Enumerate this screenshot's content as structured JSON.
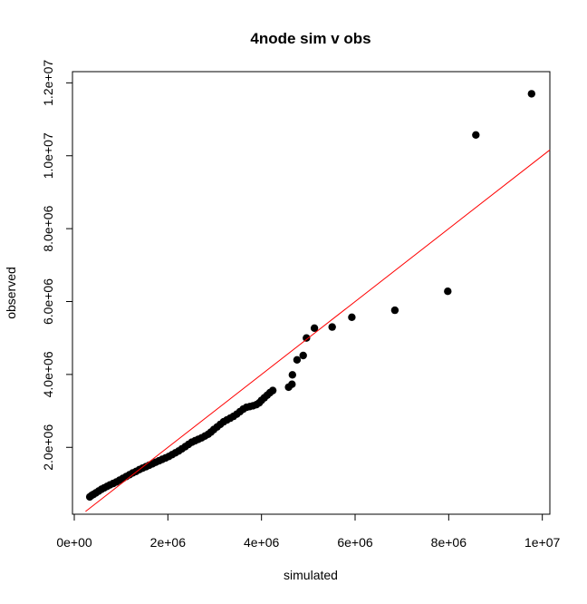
{
  "chart_data": {
    "type": "scatter",
    "title": "4node sim v obs",
    "xlabel": "simulated",
    "ylabel": "observed",
    "xlim": [
      0,
      10000000
    ],
    "ylim": [
      240000,
      12200000
    ],
    "grid": false,
    "x_ticks": [
      {
        "value": 0,
        "label": "0e+00"
      },
      {
        "value": 2000000,
        "label": "2e+06"
      },
      {
        "value": 4000000,
        "label": "4e+06"
      },
      {
        "value": 6000000,
        "label": "6e+06"
      },
      {
        "value": 8000000,
        "label": "8e+06"
      },
      {
        "value": 10000000,
        "label": "1e+07"
      }
    ],
    "y_ticks": [
      {
        "value": 2000000,
        "label": "2.0e+06"
      },
      {
        "value": 4000000,
        "label": "4.0e+06"
      },
      {
        "value": 6000000,
        "label": "6.0e+06"
      },
      {
        "value": 8000000,
        "label": "8.0e+06"
      },
      {
        "value": 10000000,
        "label": "1.0e+07"
      },
      {
        "value": 12000000,
        "label": "1.2e+07"
      }
    ],
    "reference_line": {
      "color": "#ff0000",
      "slope": 1,
      "intercept": 0
    },
    "point_color": "#000000",
    "points": [
      {
        "x": 330000,
        "y": 640000
      },
      {
        "x": 370000,
        "y": 680000
      },
      {
        "x": 410000,
        "y": 710000
      },
      {
        "x": 460000,
        "y": 750000
      },
      {
        "x": 520000,
        "y": 800000
      },
      {
        "x": 580000,
        "y": 850000
      },
      {
        "x": 640000,
        "y": 890000
      },
      {
        "x": 700000,
        "y": 930000
      },
      {
        "x": 760000,
        "y": 970000
      },
      {
        "x": 830000,
        "y": 1010000
      },
      {
        "x": 900000,
        "y": 1050000
      },
      {
        "x": 970000,
        "y": 1100000
      },
      {
        "x": 1040000,
        "y": 1150000
      },
      {
        "x": 1110000,
        "y": 1200000
      },
      {
        "x": 1180000,
        "y": 1250000
      },
      {
        "x": 1250000,
        "y": 1300000
      },
      {
        "x": 1320000,
        "y": 1340000
      },
      {
        "x": 1390000,
        "y": 1390000
      },
      {
        "x": 1460000,
        "y": 1430000
      },
      {
        "x": 1530000,
        "y": 1470000
      },
      {
        "x": 1600000,
        "y": 1510000
      },
      {
        "x": 1670000,
        "y": 1550000
      },
      {
        "x": 1740000,
        "y": 1590000
      },
      {
        "x": 1810000,
        "y": 1630000
      },
      {
        "x": 1880000,
        "y": 1670000
      },
      {
        "x": 1950000,
        "y": 1710000
      },
      {
        "x": 2020000,
        "y": 1750000
      },
      {
        "x": 2090000,
        "y": 1800000
      },
      {
        "x": 2160000,
        "y": 1850000
      },
      {
        "x": 2230000,
        "y": 1900000
      },
      {
        "x": 2300000,
        "y": 1960000
      },
      {
        "x": 2370000,
        "y": 2020000
      },
      {
        "x": 2440000,
        "y": 2080000
      },
      {
        "x": 2510000,
        "y": 2140000
      },
      {
        "x": 2580000,
        "y": 2180000
      },
      {
        "x": 2650000,
        "y": 2220000
      },
      {
        "x": 2720000,
        "y": 2260000
      },
      {
        "x": 2790000,
        "y": 2310000
      },
      {
        "x": 2860000,
        "y": 2360000
      },
      {
        "x": 2920000,
        "y": 2420000
      },
      {
        "x": 2980000,
        "y": 2490000
      },
      {
        "x": 3050000,
        "y": 2560000
      },
      {
        "x": 3120000,
        "y": 2630000
      },
      {
        "x": 3190000,
        "y": 2700000
      },
      {
        "x": 3260000,
        "y": 2750000
      },
      {
        "x": 3330000,
        "y": 2800000
      },
      {
        "x": 3400000,
        "y": 2850000
      },
      {
        "x": 3470000,
        "y": 2910000
      },
      {
        "x": 3540000,
        "y": 2980000
      },
      {
        "x": 3610000,
        "y": 3050000
      },
      {
        "x": 3680000,
        "y": 3100000
      },
      {
        "x": 3750000,
        "y": 3120000
      },
      {
        "x": 3820000,
        "y": 3140000
      },
      {
        "x": 3890000,
        "y": 3170000
      },
      {
        "x": 3950000,
        "y": 3220000
      },
      {
        "x": 4000000,
        "y": 3290000
      },
      {
        "x": 4060000,
        "y": 3360000
      },
      {
        "x": 4120000,
        "y": 3430000
      },
      {
        "x": 4180000,
        "y": 3500000
      },
      {
        "x": 4240000,
        "y": 3560000
      },
      {
        "x": 4580000,
        "y": 3650000
      },
      {
        "x": 4650000,
        "y": 3730000
      },
      {
        "x": 4660000,
        "y": 3990000
      },
      {
        "x": 4760000,
        "y": 4400000
      },
      {
        "x": 4890000,
        "y": 4520000
      },
      {
        "x": 4960000,
        "y": 5000000
      },
      {
        "x": 5130000,
        "y": 5270000
      },
      {
        "x": 5510000,
        "y": 5300000
      },
      {
        "x": 5930000,
        "y": 5570000
      },
      {
        "x": 6850000,
        "y": 5760000
      },
      {
        "x": 7980000,
        "y": 6280000
      },
      {
        "x": 8580000,
        "y": 10570000
      },
      {
        "x": 9770000,
        "y": 11700000
      }
    ]
  }
}
